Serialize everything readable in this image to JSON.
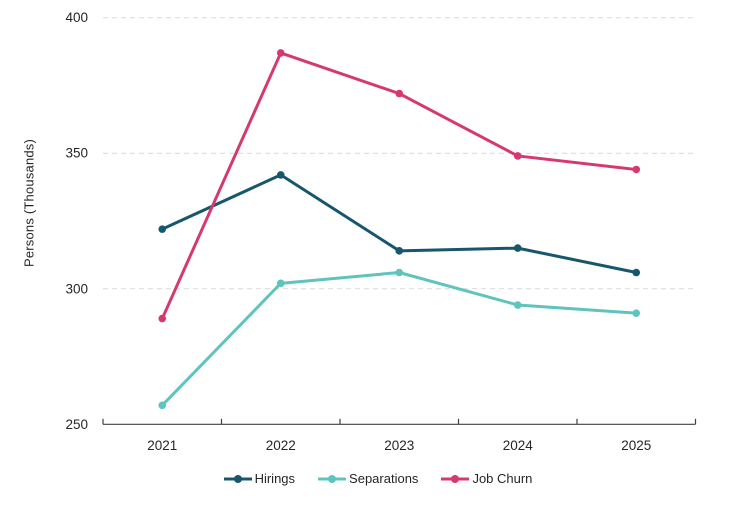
{
  "chart_data": {
    "type": "line",
    "title": "",
    "xlabel": "",
    "ylabel": "Persons (Thousands)",
    "categories": [
      "2021",
      "2022",
      "2023",
      "2024",
      "2025"
    ],
    "series": [
      {
        "name": "Hirings",
        "color": "#17576c",
        "values": [
          322,
          342,
          314,
          315,
          306
        ]
      },
      {
        "name": "Separations",
        "color": "#5fc3be",
        "values": [
          257,
          302,
          306,
          294,
          291
        ]
      },
      {
        "name": "Job Churn",
        "color": "#d63972",
        "values": [
          289,
          387,
          372,
          349,
          344
        ]
      }
    ],
    "ylim": [
      250,
      400
    ],
    "yticks": [
      250,
      300,
      350,
      400
    ],
    "grid": "horizontal-dashed",
    "legend_position": "bottom",
    "marker": "circle"
  },
  "colors": {
    "background": "#ffffff",
    "gridline": "#d9d9d9",
    "axis": "#404040",
    "tick_text": "#262626"
  }
}
